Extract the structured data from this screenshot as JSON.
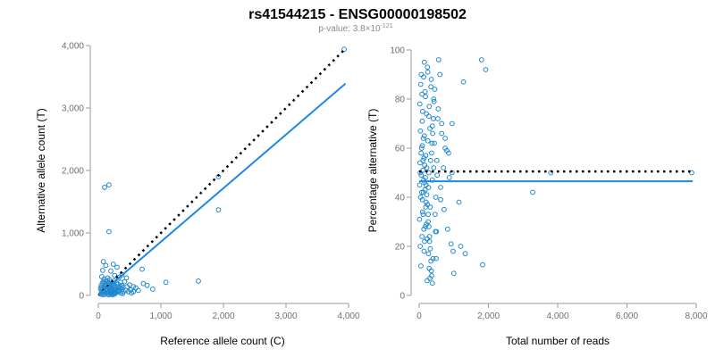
{
  "figure": {
    "title": "rs41544215 - ENSG00000198502",
    "pvalue_label": "p-value: 3.8×10",
    "pvalue_exponent": "-121",
    "colors": {
      "points": "#1f87cf",
      "fit_line": "#1e88e5",
      "reference_line": "#000000",
      "axis": "#9a9a9a"
    }
  },
  "chart_data": [
    {
      "id": "left",
      "type": "scatter",
      "title": "",
      "xlabel": "Reference allele count (C)",
      "ylabel": "Alternative allele count (T)",
      "xlim": [
        0,
        4000
      ],
      "ylim": [
        0,
        4000
      ],
      "xticks": [
        0,
        1000,
        2000,
        3000,
        4000
      ],
      "xtick_labels": [
        "0",
        "1,000",
        "2,000",
        "3,000",
        "4,000"
      ],
      "yticks": [
        0,
        1000,
        2000,
        3000,
        4000
      ],
      "ytick_labels": [
        "0",
        "1,000",
        "2,000",
        "3,000",
        "4,000"
      ],
      "fit_line": {
        "x0": 0,
        "y0": 0,
        "x1": 3950,
        "y1": 3390
      },
      "reference_line": {
        "x0": 0,
        "y0": 0,
        "x1": 3950,
        "y1": 3950
      },
      "points": [
        [
          3930,
          3940
        ],
        [
          1920,
          1900
        ],
        [
          1920,
          1370
        ],
        [
          1600,
          230
        ],
        [
          1080,
          210
        ],
        [
          870,
          100
        ],
        [
          720,
          190
        ],
        [
          780,
          160
        ],
        [
          100,
          1730
        ],
        [
          170,
          1770
        ],
        [
          170,
          1020
        ],
        [
          300,
          450
        ],
        [
          380,
          330
        ],
        [
          360,
          120
        ],
        [
          560,
          140
        ],
        [
          640,
          80
        ],
        [
          700,
          420
        ],
        [
          450,
          280
        ],
        [
          600,
          120
        ],
        [
          240,
          500
        ],
        [
          80,
          540
        ],
        [
          120,
          480
        ],
        [
          150,
          280
        ],
        [
          200,
          390
        ],
        [
          260,
          320
        ],
        [
          330,
          290
        ],
        [
          420,
          220
        ],
        [
          500,
          170
        ],
        [
          480,
          60
        ],
        [
          530,
          40
        ],
        [
          390,
          30
        ],
        [
          310,
          90
        ],
        [
          70,
          400
        ],
        [
          55,
          300
        ],
        [
          90,
          260
        ],
        [
          140,
          180
        ],
        [
          180,
          250
        ],
        [
          210,
          170
        ],
        [
          260,
          150
        ],
        [
          290,
          200
        ],
        [
          40,
          20
        ],
        [
          60,
          40
        ],
        [
          50,
          70
        ],
        [
          70,
          90
        ],
        [
          80,
          120
        ],
        [
          90,
          30
        ],
        [
          100,
          60
        ],
        [
          110,
          150
        ],
        [
          120,
          20
        ],
        [
          130,
          80
        ],
        [
          140,
          110
        ],
        [
          150,
          40
        ],
        [
          160,
          200
        ],
        [
          170,
          60
        ],
        [
          180,
          130
        ],
        [
          190,
          20
        ],
        [
          200,
          90
        ],
        [
          210,
          50
        ],
        [
          220,
          120
        ],
        [
          230,
          30
        ],
        [
          240,
          70
        ],
        [
          250,
          100
        ],
        [
          260,
          20
        ],
        [
          270,
          60
        ],
        [
          280,
          40
        ],
        [
          300,
          140
        ],
        [
          320,
          60
        ],
        [
          340,
          80
        ],
        [
          360,
          40
        ],
        [
          380,
          100
        ],
        [
          400,
          60
        ],
        [
          440,
          80
        ],
        [
          460,
          140
        ],
        [
          520,
          90
        ],
        [
          560,
          60
        ],
        [
          45,
          160
        ],
        [
          65,
          200
        ],
        [
          85,
          220
        ],
        [
          105,
          180
        ],
        [
          125,
          240
        ],
        [
          155,
          90
        ],
        [
          175,
          170
        ],
        [
          195,
          210
        ],
        [
          215,
          80
        ],
        [
          235,
          190
        ],
        [
          255,
          230
        ],
        [
          275,
          110
        ],
        [
          295,
          70
        ],
        [
          315,
          180
        ],
        [
          335,
          130
        ],
        [
          355,
          210
        ],
        [
          375,
          160
        ],
        [
          395,
          130
        ],
        [
          35,
          110
        ],
        [
          50,
          130
        ],
        [
          75,
          10
        ],
        [
          95,
          200
        ],
        [
          115,
          100
        ],
        [
          135,
          50
        ],
        [
          165,
          10
        ],
        [
          185,
          100
        ],
        [
          205,
          30
        ],
        [
          225,
          10
        ],
        [
          245,
          40
        ]
      ]
    },
    {
      "id": "right",
      "type": "scatter",
      "title": "",
      "xlabel": "Total number of reads",
      "ylabel": "Percentage alternative (T)",
      "xlim": [
        0,
        8000
      ],
      "ylim": [
        0,
        100
      ],
      "xticks": [
        0,
        2000,
        4000,
        6000,
        8000
      ],
      "xtick_labels": [
        "0",
        "2,000",
        "4,000",
        "6,000",
        "8,000"
      ],
      "yticks": [
        0,
        20,
        40,
        60,
        80,
        100
      ],
      "ytick_labels": [
        "0",
        "20",
        "40",
        "60",
        "80",
        "100"
      ],
      "fit_line": {
        "x0": 0,
        "y0": 46.5,
        "x1": 7900,
        "y1": 46.5
      },
      "reference_line": {
        "x0": 0,
        "y0": 50.5,
        "x1": 7900,
        "y1": 50.5
      },
      "points": [
        [
          7870,
          50
        ],
        [
          3800,
          50
        ],
        [
          3280,
          42
        ],
        [
          1800,
          96
        ],
        [
          1920,
          92
        ],
        [
          1830,
          12.5
        ],
        [
          1280,
          87
        ],
        [
          1330,
          17
        ],
        [
          1200,
          20
        ],
        [
          1150,
          38
        ],
        [
          1000,
          9
        ],
        [
          950,
          70
        ],
        [
          980,
          18
        ],
        [
          950,
          50
        ],
        [
          870,
          48
        ],
        [
          800,
          59
        ],
        [
          750,
          60
        ],
        [
          700,
          52
        ],
        [
          650,
          66
        ],
        [
          620,
          44
        ],
        [
          600,
          90
        ],
        [
          560,
          96
        ],
        [
          540,
          72
        ],
        [
          510,
          55
        ],
        [
          500,
          26
        ],
        [
          480,
          40
        ],
        [
          460,
          33
        ],
        [
          440,
          62
        ],
        [
          420,
          80
        ],
        [
          400,
          15
        ],
        [
          380,
          47
        ],
        [
          360,
          58
        ],
        [
          350,
          10
        ],
        [
          340,
          85
        ],
        [
          320,
          36
        ],
        [
          310,
          68
        ],
        [
          300,
          22
        ],
        [
          290,
          77
        ],
        [
          280,
          50
        ],
        [
          270,
          44
        ],
        [
          260,
          30
        ],
        [
          250,
          63
        ],
        [
          240,
          93
        ],
        [
          230,
          6
        ],
        [
          220,
          52
        ],
        [
          210,
          74
        ],
        [
          200,
          38
        ],
        [
          190,
          57
        ],
        [
          180,
          28
        ],
        [
          170,
          83
        ],
        [
          160,
          46
        ],
        [
          150,
          65
        ],
        [
          140,
          18
        ],
        [
          130,
          89
        ],
        [
          120,
          42
        ],
        [
          110,
          55
        ],
        [
          100,
          34
        ],
        [
          90,
          71
        ],
        [
          80,
          24
        ],
        [
          70,
          60
        ],
        [
          60,
          49
        ],
        [
          50,
          12
        ],
        [
          45,
          86
        ],
        [
          40,
          40
        ],
        [
          35,
          67
        ],
        [
          30,
          20
        ],
        [
          25,
          54
        ],
        [
          20,
          78
        ],
        [
          15,
          45
        ],
        [
          10,
          31
        ],
        [
          60,
          90
        ],
        [
          80,
          82
        ],
        [
          100,
          75
        ],
        [
          120,
          64
        ],
        [
          140,
          56
        ],
        [
          160,
          53
        ],
        [
          180,
          48
        ],
        [
          200,
          45
        ],
        [
          220,
          41
        ],
        [
          240,
          37
        ],
        [
          260,
          33
        ],
        [
          280,
          28
        ],
        [
          300,
          24
        ],
        [
          320,
          19
        ],
        [
          340,
          14
        ],
        [
          360,
          8
        ],
        [
          380,
          5
        ],
        [
          150,
          95
        ],
        [
          250,
          91
        ],
        [
          350,
          88
        ],
        [
          450,
          84
        ],
        [
          550,
          76
        ],
        [
          650,
          70
        ],
        [
          750,
          64
        ],
        [
          850,
          58
        ],
        [
          420,
          52
        ],
        [
          520,
          49
        ],
        [
          620,
          39
        ],
        [
          720,
          35
        ],
        [
          820,
          27
        ],
        [
          920,
          21
        ],
        [
          380,
          69
        ],
        [
          280,
          73
        ],
        [
          180,
          81
        ],
        [
          90,
          61
        ],
        [
          110,
          51
        ],
        [
          130,
          47
        ],
        [
          170,
          43
        ],
        [
          190,
          36
        ],
        [
          210,
          29
        ],
        [
          230,
          23
        ],
        [
          270,
          17
        ],
        [
          290,
          11
        ],
        [
          310,
          7
        ],
        [
          330,
          55
        ],
        [
          370,
          62
        ],
        [
          390,
          66
        ],
        [
          410,
          72
        ],
        [
          430,
          79
        ],
        [
          470,
          26
        ],
        [
          490,
          15
        ],
        [
          30,
          50
        ],
        [
          55,
          58
        ],
        [
          75,
          42
        ],
        [
          95,
          39
        ],
        [
          115,
          33
        ],
        [
          135,
          27
        ],
        [
          155,
          22
        ]
      ]
    }
  ]
}
